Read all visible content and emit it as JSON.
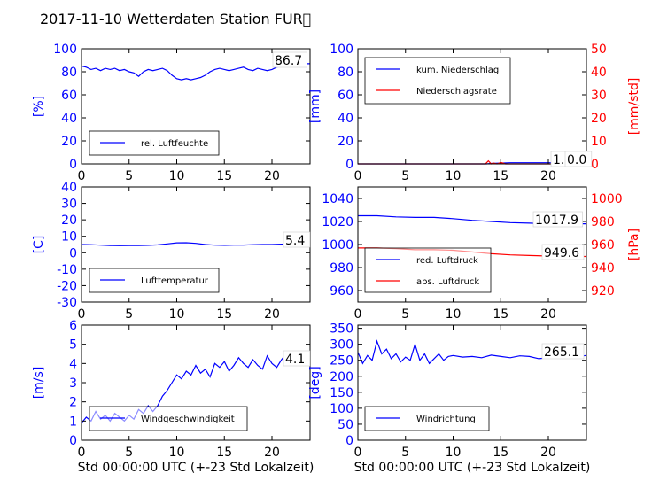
{
  "title": "2017-11-10 Wetterdaten Station FUR\u0000",
  "colors": {
    "left_axis": "#0000ff",
    "right_axis": "#ff0000",
    "line_blue": "#0000ff",
    "line_red": "#ff0000"
  },
  "chart_data": [
    {
      "id": "humidity",
      "type": "line",
      "ylabel": "[%]",
      "xlim": [
        0,
        24
      ],
      "ylim": [
        0,
        100
      ],
      "xticks": [
        0,
        5,
        10,
        15,
        20
      ],
      "yticks": [
        0,
        20,
        40,
        60,
        80,
        100
      ],
      "last_value_label": "86.7",
      "legend": [
        "rel. Luftfeuchte"
      ],
      "series": [
        {
          "name": "rel. Luftfeuchte",
          "x": [
            0,
            0.5,
            1,
            1.5,
            2,
            2.5,
            3,
            3.5,
            4,
            4.5,
            5,
            5.5,
            6,
            6.5,
            7,
            7.5,
            8,
            8.5,
            9,
            9.5,
            10,
            10.5,
            11,
            11.5,
            12,
            12.5,
            13,
            13.5,
            14,
            14.5,
            15,
            15.5,
            16,
            16.5,
            17,
            17.5,
            18,
            18.5,
            19,
            19.5,
            20,
            20.5,
            21,
            21.5,
            22,
            22.5,
            23,
            23.5,
            24
          ],
          "y": [
            85,
            84,
            82,
            83,
            81,
            83,
            82,
            83,
            81,
            82,
            80,
            79,
            76,
            80,
            82,
            81,
            82,
            83,
            81,
            77,
            74,
            73,
            74,
            73,
            74,
            75,
            77,
            80,
            82,
            83,
            82,
            81,
            82,
            83,
            84,
            82,
            81,
            83,
            82,
            81,
            82,
            84,
            85,
            86,
            86,
            85,
            86,
            87,
            87
          ]
        }
      ]
    },
    {
      "id": "precipitation",
      "type": "line",
      "ylabel": "[mm]",
      "ylabel_right": "[mm/std]",
      "xlim": [
        0,
        24
      ],
      "ylim": [
        0,
        100
      ],
      "ylim_right": [
        0,
        50
      ],
      "xticks": [
        0,
        5,
        10,
        15,
        20
      ],
      "yticks": [
        0,
        20,
        40,
        60,
        80,
        100
      ],
      "yticks_right": [
        0,
        10,
        20,
        30,
        40,
        50
      ],
      "last_value_label": "1.0",
      "last_value_label_right": "0.0",
      "legend": [
        "kum. Niederschlag",
        "Niederschlagsrate"
      ],
      "series": [
        {
          "name": "kum. Niederschlag",
          "axis": "left",
          "x": [
            0,
            13.5,
            14,
            15,
            16,
            20,
            24
          ],
          "y": [
            0,
            0,
            0.4,
            0.7,
            1.0,
            1.0,
            1.0
          ]
        },
        {
          "name": "Niederschlagsrate",
          "axis": "right",
          "x": [
            0,
            13.4,
            13.7,
            14,
            14.2,
            14.6,
            15,
            15.5,
            16,
            24
          ],
          "y": [
            0,
            0,
            1.3,
            0,
            0.4,
            0,
            0.6,
            0,
            0,
            0
          ]
        }
      ]
    },
    {
      "id": "temperature",
      "type": "line",
      "ylabel": "[C]",
      "xlim": [
        0,
        24
      ],
      "ylim": [
        -30,
        40
      ],
      "xticks": [
        0,
        5,
        10,
        15,
        20
      ],
      "yticks": [
        -30,
        -20,
        -10,
        0,
        10,
        20,
        30,
        40
      ],
      "last_value_label": "5.4",
      "legend": [
        "Lufttemperatur"
      ],
      "series": [
        {
          "name": "Lufttemperatur",
          "x": [
            0,
            1,
            2,
            3,
            4,
            5,
            6,
            7,
            8,
            9,
            10,
            11,
            12,
            13,
            14,
            15,
            16,
            17,
            18,
            19,
            20,
            21,
            22,
            23,
            24
          ],
          "y": [
            5,
            4.9,
            4.6,
            4.4,
            4.3,
            4.4,
            4.4,
            4.5,
            4.8,
            5.4,
            6.0,
            6.1,
            5.7,
            5.0,
            4.6,
            4.5,
            4.6,
            4.7,
            4.9,
            5.0,
            5.0,
            5.2,
            5.3,
            5.3,
            5.4
          ]
        }
      ]
    },
    {
      "id": "pressure",
      "type": "line",
      "ylabel_right": "[hPa]",
      "xlim": [
        0,
        24
      ],
      "ylim": [
        950,
        1050
      ],
      "ylim_right": [
        910,
        1010
      ],
      "xticks": [
        0,
        5,
        10,
        15,
        20
      ],
      "yticks": [
        960,
        980,
        1000,
        1020,
        1040
      ],
      "yticks_right": [
        920,
        940,
        960,
        980,
        1000
      ],
      "last_value_label": "1017.9",
      "last_value_label_right": "949.6",
      "legend": [
        "red. Luftdruck",
        "abs. Luftdruck"
      ],
      "series": [
        {
          "name": "red. Luftdruck",
          "axis": "left",
          "x": [
            0,
            2,
            4,
            6,
            8,
            10,
            12,
            14,
            16,
            18,
            20,
            22,
            24
          ],
          "y": [
            1025,
            1025,
            1024,
            1023.5,
            1023.5,
            1022.5,
            1021,
            1020,
            1019,
            1018.5,
            1018,
            1018,
            1018
          ]
        },
        {
          "name": "abs. Luftdruck",
          "axis": "right",
          "x": [
            0,
            2,
            4,
            6,
            8,
            10,
            12,
            14,
            16,
            18,
            20,
            22,
            24
          ],
          "y": [
            957,
            957,
            956.5,
            955.5,
            955.5,
            955,
            953.5,
            952,
            951,
            950.5,
            950,
            949.8,
            949.6
          ]
        }
      ]
    },
    {
      "id": "windspeed",
      "type": "line",
      "ylabel": "[m/s]",
      "xlim": [
        0,
        24
      ],
      "ylim": [
        0,
        6
      ],
      "xticks": [
        0,
        5,
        10,
        15,
        20
      ],
      "yticks": [
        0,
        1,
        2,
        3,
        4,
        5,
        6
      ],
      "last_value_label": "4.1",
      "legend": [
        "Windgeschwindigkeit"
      ],
      "series": [
        {
          "name": "Windgeschwindigkeit",
          "x": [
            0,
            0.5,
            1,
            1.5,
            2,
            2.5,
            3,
            3.5,
            4,
            4.5,
            5,
            5.5,
            6,
            6.5,
            7,
            7.5,
            8,
            8.5,
            9,
            9.5,
            10,
            10.5,
            11,
            11.5,
            12,
            12.5,
            13,
            13.5,
            14,
            14.5,
            15,
            15.5,
            16,
            16.5,
            17,
            17.5,
            18,
            18.5,
            19,
            19.5,
            20,
            20.5,
            21,
            21.5,
            22,
            22.5,
            23,
            23.5,
            24
          ],
          "y": [
            0.9,
            1.2,
            1.0,
            1.5,
            1.1,
            1.3,
            1.0,
            1.4,
            1.2,
            1.0,
            1.3,
            1.1,
            1.6,
            1.4,
            1.8,
            1.5,
            1.8,
            2.3,
            2.6,
            3.0,
            3.4,
            3.2,
            3.6,
            3.4,
            3.9,
            3.5,
            3.7,
            3.3,
            4.0,
            3.8,
            4.1,
            3.6,
            3.9,
            4.3,
            4.0,
            3.8,
            4.2,
            3.9,
            3.7,
            4.4,
            4.0,
            3.8,
            4.2,
            4.5,
            3.9,
            4.3,
            4.1,
            4.6,
            4.1
          ]
        }
      ]
    },
    {
      "id": "winddirection",
      "type": "line",
      "ylabel": "[deg]",
      "xlim": [
        0,
        24
      ],
      "ylim": [
        0,
        360
      ],
      "xticks": [
        0,
        5,
        10,
        15,
        20
      ],
      "yticks": [
        0,
        50,
        100,
        150,
        200,
        250,
        300,
        350
      ],
      "last_value_label": "265.1",
      "legend": [
        "Windrichtung"
      ],
      "series": [
        {
          "name": "Windrichtung",
          "x": [
            0,
            0.5,
            1,
            1.5,
            2,
            2.5,
            3,
            3.5,
            4,
            4.5,
            5,
            5.5,
            6,
            6.5,
            7,
            7.5,
            8,
            8.5,
            9,
            9.5,
            10,
            11,
            12,
            13,
            14,
            15,
            16,
            17,
            18,
            19,
            20,
            21,
            22,
            23,
            24
          ],
          "y": [
            275,
            240,
            265,
            250,
            310,
            270,
            285,
            255,
            270,
            245,
            260,
            250,
            300,
            250,
            270,
            240,
            255,
            270,
            250,
            262,
            265,
            260,
            262,
            258,
            266,
            262,
            258,
            264,
            262,
            255,
            258,
            262,
            266,
            262,
            265
          ]
        }
      ]
    }
  ],
  "xlabel_bottom": "Std 00:00:00 UTC (+-23 Std Lokalzeit)"
}
